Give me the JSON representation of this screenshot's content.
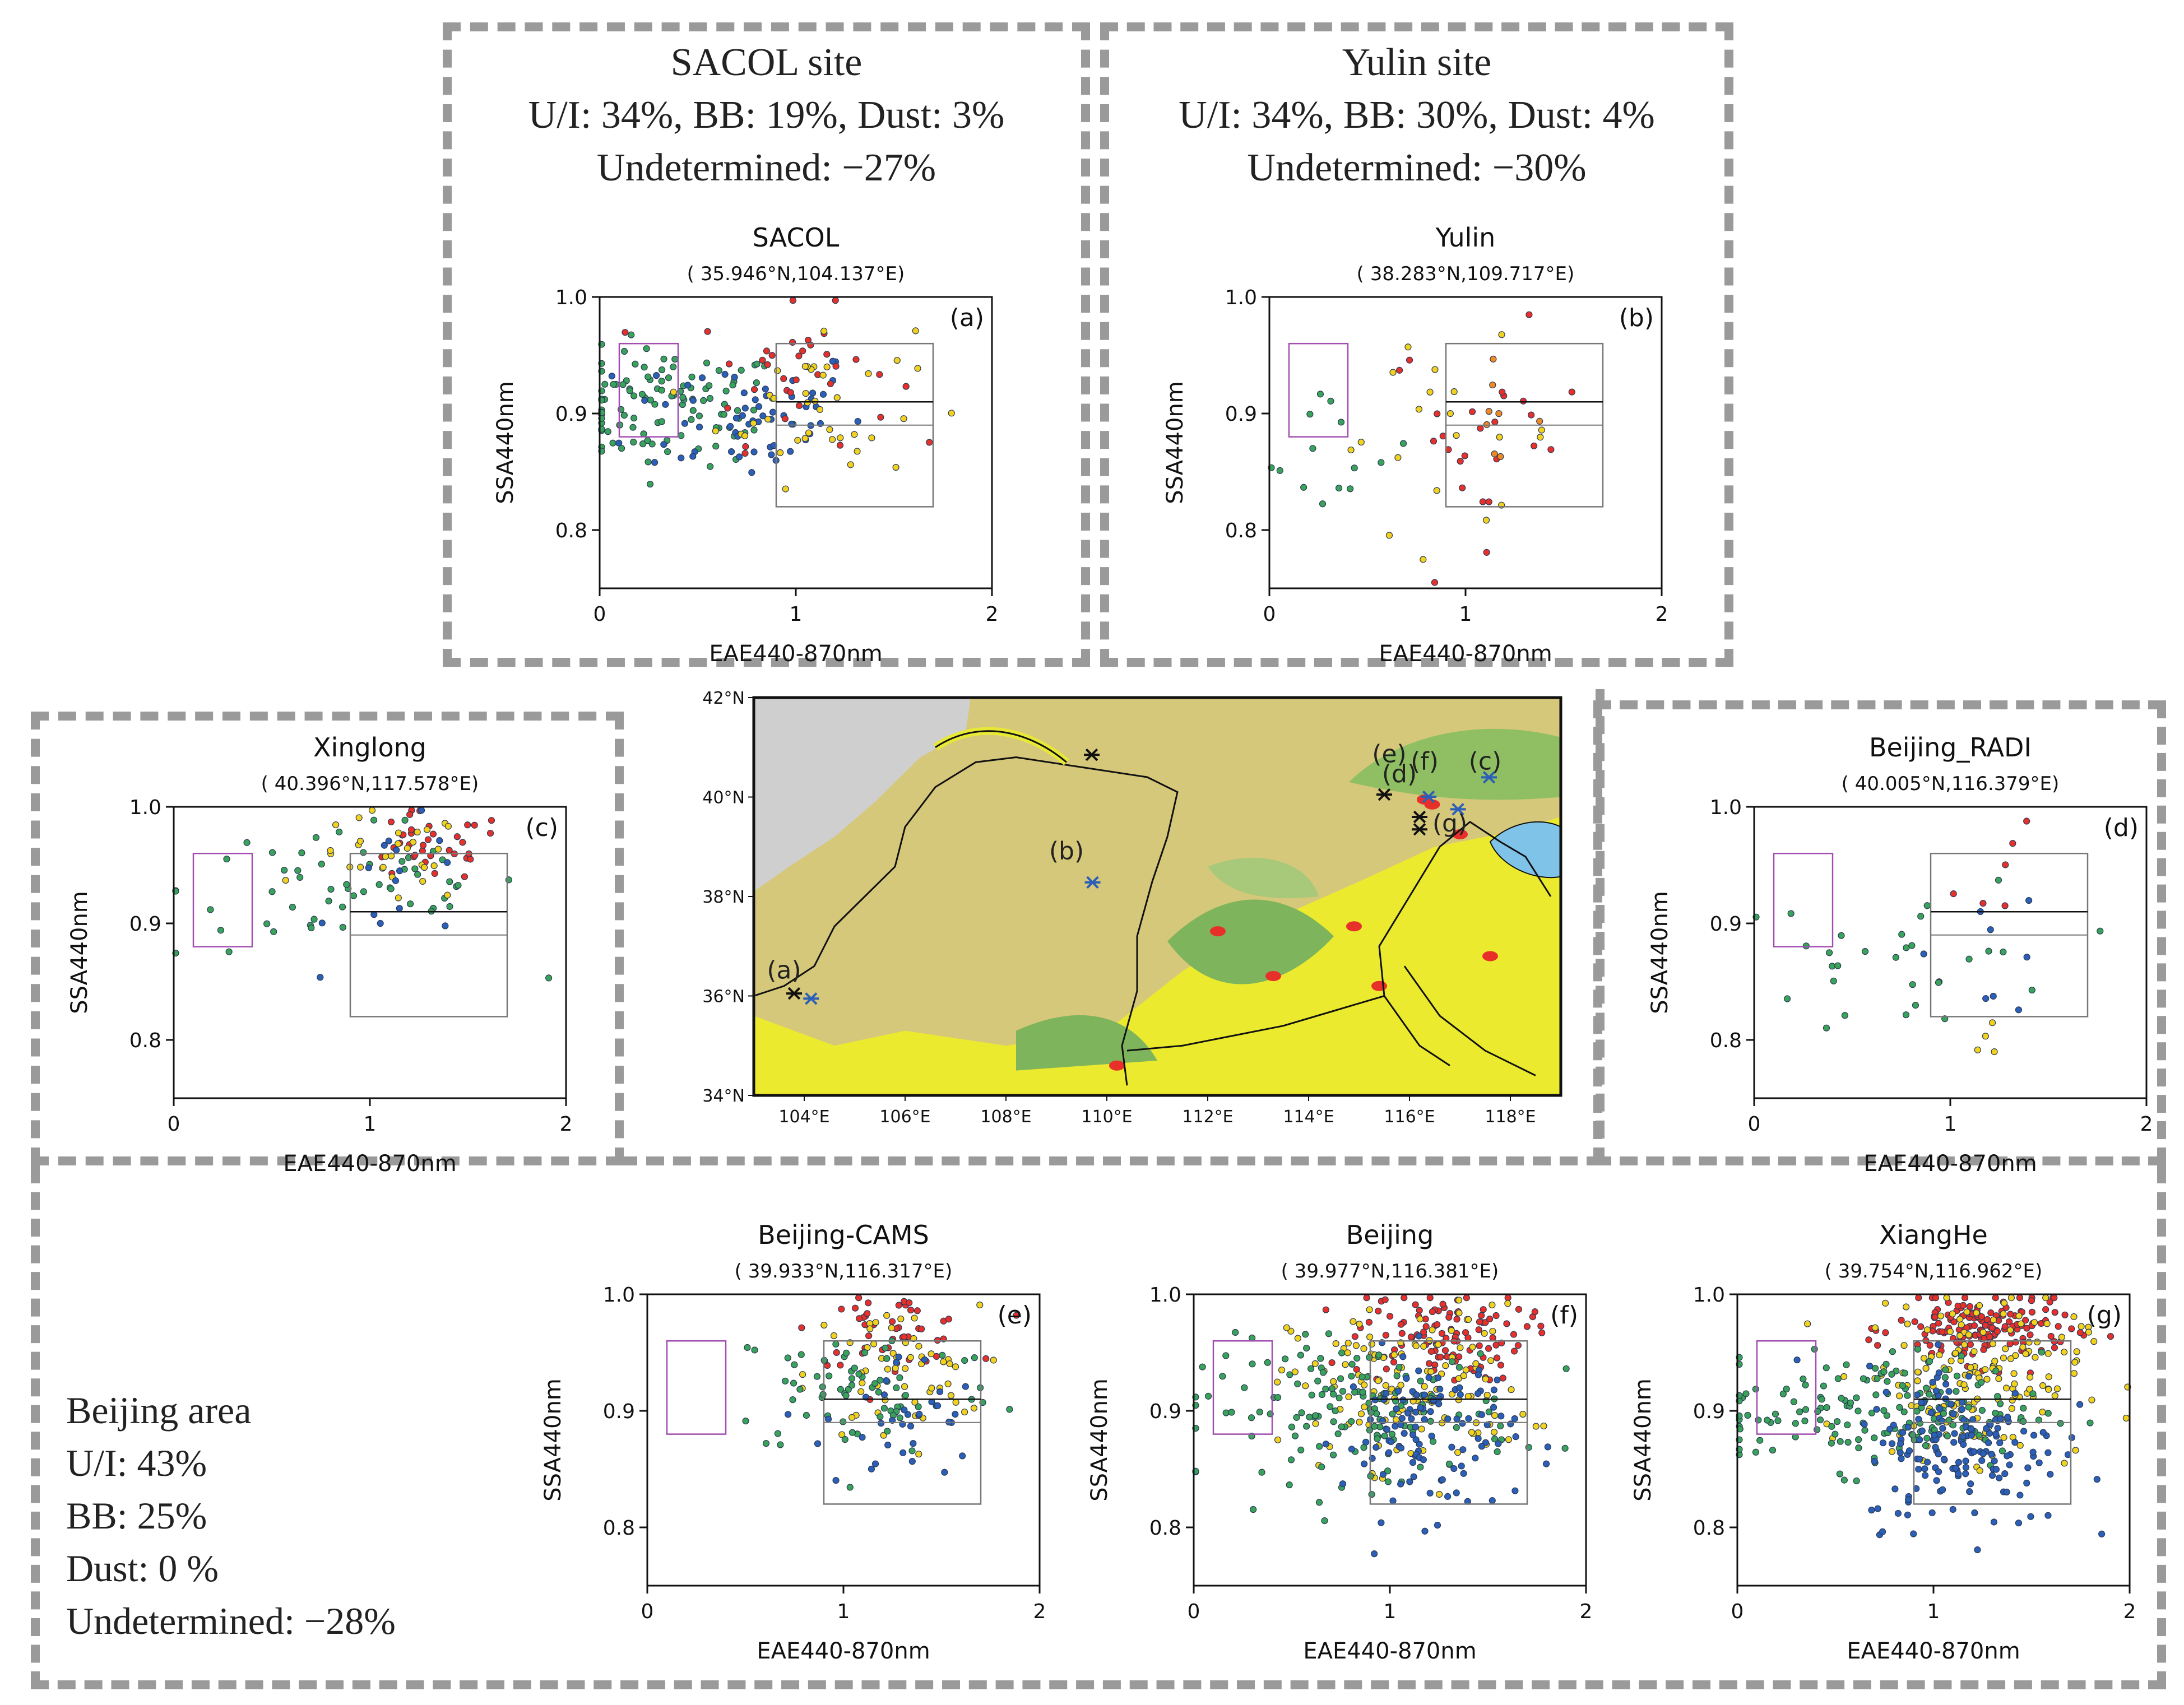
{
  "colors": {
    "red": "#e8302b",
    "yellow": "#f2d21d",
    "green": "#3aa35a",
    "blue": "#2b5fb8",
    "orange": "#f08a24",
    "frame": "#9a9a9a",
    "purple": "#a24db0",
    "grey": "#777777"
  },
  "groups": {
    "sacol": {
      "title": "SACOL site",
      "lines": [
        "U/I: 34%, BB: 19%, Dust: 3%",
        "Undetermined: −27%"
      ]
    },
    "yulin": {
      "title": "Yulin site",
      "lines": [
        "U/I: 34%, BB: 30%, Dust: 4%",
        "Undetermined: −30%"
      ]
    },
    "beijing_area": {
      "lines": [
        "Beijing area",
        "U/I: 43%",
        "BB: 25%",
        "Dust: 0 %",
        "Undetermined: −28%"
      ]
    }
  },
  "chart_data": [
    {
      "type": "scatter",
      "id": "a",
      "title": "SACOL",
      "subtitle": "( 35.946°N,104.137°E)",
      "label": "(a)",
      "xlabel": "EAE440-870nm",
      "ylabel": "SSA440nm",
      "xlim": [
        0,
        2
      ],
      "ylim": [
        0.75,
        1.0
      ],
      "xticks": [
        "0",
        "1",
        "2"
      ],
      "yticks": [
        "0.8",
        "0.9",
        "1.0"
      ],
      "ytick_values": [
        0.8,
        0.9,
        1.0
      ],
      "boxes": {
        "dust": [
          0.1,
          0.4,
          0.88,
          0.96
        ],
        "mixed": [
          0.9,
          1.7,
          0.82,
          0.96
        ],
        "lines": [
          0.91,
          0.89
        ]
      },
      "clusters": [
        {
          "color": "green",
          "n": 110,
          "cx": 0.35,
          "sx": 0.3,
          "cy": 0.905,
          "sy": 0.025
        },
        {
          "color": "blue",
          "n": 60,
          "cx": 0.75,
          "sx": 0.3,
          "cy": 0.9,
          "sy": 0.03
        },
        {
          "color": "red",
          "n": 35,
          "cx": 1.0,
          "sx": 0.25,
          "cy": 0.935,
          "sy": 0.03
        },
        {
          "color": "yellow",
          "n": 40,
          "cx": 1.1,
          "sx": 0.25,
          "cy": 0.91,
          "sy": 0.035
        }
      ]
    },
    {
      "type": "scatter",
      "id": "b",
      "title": "Yulin",
      "subtitle": "( 38.283°N,109.717°E)",
      "label": "(b)",
      "xlabel": "EAE440-870nm",
      "ylabel": "SSA440nm",
      "xlim": [
        0,
        2
      ],
      "ylim": [
        0.75,
        1.0
      ],
      "xticks": [
        "0",
        "1",
        "2"
      ],
      "yticks": [
        "0.8",
        "0.9",
        "1.0"
      ],
      "ytick_values": [
        0.8,
        0.9,
        1.0
      ],
      "boxes": {
        "dust": [
          0.1,
          0.4,
          0.88,
          0.96
        ],
        "mixed": [
          0.9,
          1.7,
          0.82,
          0.96
        ],
        "lines": [
          0.91,
          0.89
        ]
      },
      "clusters": [
        {
          "color": "green",
          "n": 14,
          "cx": 0.35,
          "sx": 0.2,
          "cy": 0.865,
          "sy": 0.03
        },
        {
          "color": "red",
          "n": 25,
          "cx": 1.1,
          "sx": 0.25,
          "cy": 0.88,
          "sy": 0.045
        },
        {
          "color": "yellow",
          "n": 20,
          "cx": 0.9,
          "sx": 0.3,
          "cy": 0.88,
          "sy": 0.04
        },
        {
          "color": "orange",
          "n": 8,
          "cx": 1.1,
          "sx": 0.15,
          "cy": 0.9,
          "sy": 0.02
        }
      ]
    },
    {
      "type": "scatter",
      "id": "c",
      "title": "Xinglong",
      "subtitle": "( 40.396°N,117.578°E)",
      "label": "(c)",
      "xlabel": "EAE440-870nm",
      "ylabel": "SSA440nm",
      "xlim": [
        0,
        2
      ],
      "ylim": [
        0.75,
        1.0
      ],
      "xticks": [
        "0",
        "1",
        "2"
      ],
      "yticks": [
        "0.8",
        "0.9",
        "1.0"
      ],
      "ytick_values": [
        0.8,
        0.9,
        1.0
      ],
      "boxes": {
        "dust": [
          0.1,
          0.4,
          0.88,
          0.96
        ],
        "mixed": [
          0.9,
          1.7,
          0.82,
          0.96
        ],
        "lines": [
          0.91,
          0.89
        ]
      },
      "clusters": [
        {
          "color": "green",
          "n": 55,
          "cx": 0.9,
          "sx": 0.45,
          "cy": 0.93,
          "sy": 0.03
        },
        {
          "color": "red",
          "n": 35,
          "cx": 1.3,
          "sx": 0.2,
          "cy": 0.965,
          "sy": 0.015
        },
        {
          "color": "yellow",
          "n": 30,
          "cx": 1.1,
          "sx": 0.2,
          "cy": 0.955,
          "sy": 0.02
        },
        {
          "color": "blue",
          "n": 15,
          "cx": 1.2,
          "sx": 0.2,
          "cy": 0.93,
          "sy": 0.03
        }
      ]
    },
    {
      "type": "scatter",
      "id": "d",
      "title": "Beijing_RADI",
      "subtitle": "( 40.005°N,116.379°E)",
      "label": "(d)",
      "xlabel": "EAE440-870nm",
      "ylabel": "SSA440nm",
      "xlim": [
        0,
        2
      ],
      "ylim": [
        0.75,
        1.0
      ],
      "xticks": [
        "0",
        "1",
        "2"
      ],
      "yticks": [
        "0.8",
        "0.9",
        "1.0"
      ],
      "ytick_values": [
        0.8,
        0.9,
        1.0
      ],
      "boxes": {
        "dust": [
          0.1,
          0.4,
          0.88,
          0.96
        ],
        "mixed": [
          0.9,
          1.7,
          0.82,
          0.96
        ],
        "lines": [
          0.91,
          0.89
        ]
      },
      "clusters": [
        {
          "color": "green",
          "n": 30,
          "cx": 0.8,
          "sx": 0.4,
          "cy": 0.87,
          "sy": 0.035
        },
        {
          "color": "blue",
          "n": 8,
          "cx": 1.2,
          "sx": 0.15,
          "cy": 0.88,
          "sy": 0.03
        },
        {
          "color": "red",
          "n": 6,
          "cx": 1.3,
          "sx": 0.15,
          "cy": 0.94,
          "sy": 0.02
        },
        {
          "color": "yellow",
          "n": 4,
          "cx": 1.25,
          "sx": 0.1,
          "cy": 0.8,
          "sy": 0.02
        }
      ]
    },
    {
      "type": "scatter",
      "id": "e",
      "title": "Beijing-CAMS",
      "subtitle": "( 39.933°N,116.317°E)",
      "label": "(e)",
      "xlabel": "EAE440-870nm",
      "ylabel": "SSA440nm",
      "xlim": [
        0,
        2
      ],
      "ylim": [
        0.75,
        1.0
      ],
      "xticks": [
        "0",
        "1",
        "2"
      ],
      "yticks": [
        "0.8",
        "0.9",
        "1.0"
      ],
      "ytick_values": [
        0.8,
        0.9,
        1.0
      ],
      "boxes": {
        "dust": [
          0.1,
          0.4,
          0.88,
          0.96
        ],
        "mixed": [
          0.9,
          1.7,
          0.82,
          0.96
        ],
        "lines": [
          0.91,
          0.89
        ]
      },
      "clusters": [
        {
          "color": "red",
          "n": 45,
          "cx": 1.25,
          "sx": 0.2,
          "cy": 0.97,
          "sy": 0.015
        },
        {
          "color": "yellow",
          "n": 60,
          "cx": 1.25,
          "sx": 0.22,
          "cy": 0.93,
          "sy": 0.03
        },
        {
          "color": "green",
          "n": 70,
          "cx": 1.1,
          "sx": 0.35,
          "cy": 0.92,
          "sy": 0.03
        },
        {
          "color": "blue",
          "n": 35,
          "cx": 1.3,
          "sx": 0.2,
          "cy": 0.89,
          "sy": 0.03
        }
      ]
    },
    {
      "type": "scatter",
      "id": "f",
      "title": "Beijing",
      "subtitle": "( 39.977°N,116.381°E)",
      "label": "(f)",
      "xlabel": "EAE440-870nm",
      "ylabel": "SSA440nm",
      "xlim": [
        0,
        2
      ],
      "ylim": [
        0.75,
        1.0
      ],
      "xticks": [
        "0",
        "1",
        "2"
      ],
      "yticks": [
        "0.8",
        "0.9",
        "1.0"
      ],
      "ytick_values": [
        0.8,
        0.9,
        1.0
      ],
      "boxes": {
        "dust": [
          0.1,
          0.4,
          0.88,
          0.96
        ],
        "mixed": [
          0.9,
          1.7,
          0.82,
          0.96
        ],
        "lines": [
          0.91,
          0.89
        ]
      },
      "clusters": [
        {
          "color": "red",
          "n": 110,
          "cx": 1.25,
          "sx": 0.22,
          "cy": 0.965,
          "sy": 0.02
        },
        {
          "color": "yellow",
          "n": 140,
          "cx": 1.1,
          "sx": 0.3,
          "cy": 0.92,
          "sy": 0.035
        },
        {
          "color": "green",
          "n": 150,
          "cx": 0.85,
          "sx": 0.4,
          "cy": 0.9,
          "sy": 0.03
        },
        {
          "color": "blue",
          "n": 110,
          "cx": 1.2,
          "sx": 0.22,
          "cy": 0.88,
          "sy": 0.035
        }
      ]
    },
    {
      "type": "scatter",
      "id": "g",
      "title": "XiangHe",
      "subtitle": "( 39.754°N,116.962°E)",
      "label": "(g)",
      "xlabel": "EAE440-870nm",
      "ylabel": "SSA440nm",
      "xlim": [
        0,
        2
      ],
      "ylim": [
        0.75,
        1.0
      ],
      "xticks": [
        "0",
        "1",
        "2"
      ],
      "yticks": [
        "0.8",
        "0.9",
        "1.0"
      ],
      "ytick_values": [
        0.8,
        0.9,
        1.0
      ],
      "boxes": {
        "dust": [
          0.1,
          0.4,
          0.88,
          0.96
        ],
        "mixed": [
          0.9,
          1.7,
          0.82,
          0.96
        ],
        "lines": [
          0.91,
          0.89
        ]
      },
      "clusters": [
        {
          "color": "red",
          "n": 160,
          "cx": 1.25,
          "sx": 0.22,
          "cy": 0.97,
          "sy": 0.015
        },
        {
          "color": "yellow",
          "n": 170,
          "cx": 1.2,
          "sx": 0.28,
          "cy": 0.93,
          "sy": 0.035
        },
        {
          "color": "green",
          "n": 170,
          "cx": 0.75,
          "sx": 0.4,
          "cy": 0.9,
          "sy": 0.025
        },
        {
          "color": "blue",
          "n": 160,
          "cx": 1.15,
          "sx": 0.25,
          "cy": 0.87,
          "sy": 0.035
        }
      ]
    }
  ],
  "map": {
    "lon_ticks": [
      "104°E",
      "106°E",
      "108°E",
      "110°E",
      "112°E",
      "114°E",
      "116°E",
      "118°E"
    ],
    "lon_values": [
      104,
      106,
      108,
      110,
      112,
      114,
      116,
      118
    ],
    "lat_ticks": [
      "34°N",
      "36°N",
      "38°N",
      "40°N",
      "42°N"
    ],
    "lat_values": [
      34,
      36,
      38,
      40,
      42
    ],
    "lon_range": [
      103,
      119
    ],
    "lat_range": [
      34,
      42
    ],
    "site_labels": [
      {
        "label": "(a)",
        "lon": 103.6,
        "lat": 36.35
      },
      {
        "label": "(b)",
        "lon": 109.2,
        "lat": 38.75
      },
      {
        "label": "(e)",
        "lon": 115.6,
        "lat": 40.7
      },
      {
        "label": "(d)",
        "lon": 115.8,
        "lat": 40.3
      },
      {
        "label": "(f)",
        "lon": 116.3,
        "lat": 40.55
      },
      {
        "label": "(c)",
        "lon": 117.5,
        "lat": 40.55
      },
      {
        "label": "(g)",
        "lon": 116.8,
        "lat": 39.3
      }
    ],
    "markers": [
      {
        "lon": 104.137,
        "lat": 35.946,
        "color": "blue"
      },
      {
        "lon": 103.8,
        "lat": 36.05,
        "color": "black"
      },
      {
        "lon": 109.717,
        "lat": 38.283,
        "color": "blue"
      },
      {
        "lon": 109.7,
        "lat": 40.85,
        "color": "black"
      },
      {
        "lon": 117.578,
        "lat": 40.396,
        "color": "blue"
      },
      {
        "lon": 115.5,
        "lat": 40.05,
        "color": "black"
      },
      {
        "lon": 116.2,
        "lat": 39.6,
        "color": "black"
      },
      {
        "lon": 116.2,
        "lat": 39.35,
        "color": "black"
      },
      {
        "lon": 116.962,
        "lat": 39.754,
        "color": "blue"
      },
      {
        "lon": 116.379,
        "lat": 40.005,
        "color": "blue"
      }
    ]
  }
}
